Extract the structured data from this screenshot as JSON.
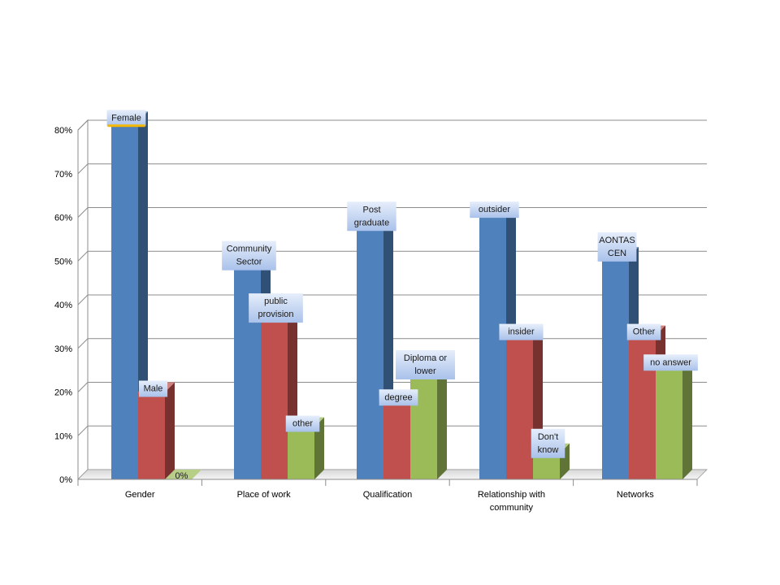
{
  "chart_data": {
    "type": "bar",
    "title": "",
    "xlabel": "",
    "ylabel": "",
    "ylim": [
      0,
      80
    ],
    "y_ticks": [
      "0%",
      "10%",
      "20%",
      "30%",
      "40%",
      "50%",
      "60%",
      "70%",
      "80%"
    ],
    "grid": true,
    "legend": "none",
    "style": "3d-clustered-column",
    "categories": [
      [
        "Gender"
      ],
      [
        "Place of work"
      ],
      [
        "Qualification"
      ],
      [
        "Relationship with",
        "community"
      ],
      [
        "Networks"
      ]
    ],
    "series_colors": [
      "#4f81bd",
      "#c0504d",
      "#9bbb59"
    ],
    "bars": [
      [
        {
          "value": 82,
          "label": [
            "Female"
          ]
        },
        {
          "value": 20,
          "label": [
            "Male"
          ]
        },
        {
          "value": 0,
          "label": [
            "0%"
          ]
        }
      ],
      [
        {
          "value": 49,
          "label": [
            "Community",
            "Sector"
          ]
        },
        {
          "value": 37,
          "label": [
            "public",
            "provision"
          ]
        },
        {
          "value": 12,
          "label": [
            "other"
          ]
        }
      ],
      [
        {
          "value": 58,
          "label": [
            "Post",
            "graduate"
          ]
        },
        {
          "value": 18,
          "label": [
            "degree"
          ]
        },
        {
          "value": 24,
          "label": [
            "Diploma or",
            "lower"
          ]
        }
      ],
      [
        {
          "value": 61,
          "label": [
            "outsider"
          ]
        },
        {
          "value": 33,
          "label": [
            "insider"
          ]
        },
        {
          "value": 6,
          "label": [
            "Don't",
            "know"
          ]
        }
      ],
      [
        {
          "value": 51,
          "label": [
            "AONTAS",
            "CEN"
          ]
        },
        {
          "value": 33,
          "label": [
            "Other"
          ]
        },
        {
          "value": 26,
          "label": [
            "no answer"
          ]
        }
      ]
    ]
  }
}
